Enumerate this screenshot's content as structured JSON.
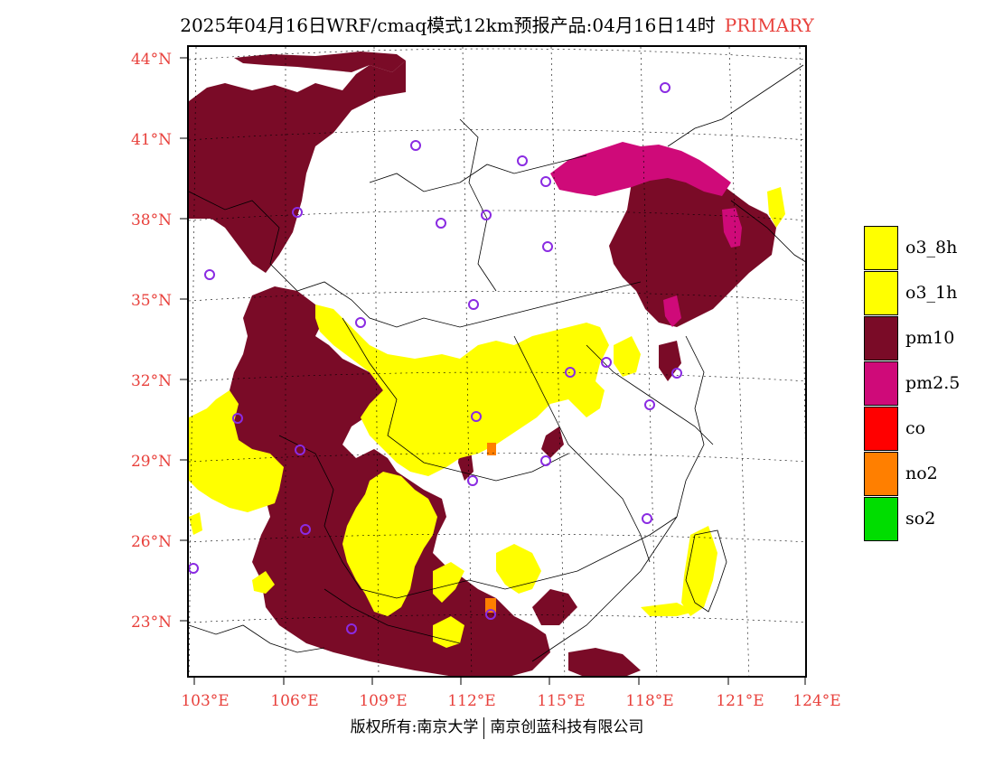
{
  "header": {
    "title": "2025年04月16日WRF/cmaq模式12km预报产品:04月16日14时",
    "tag": "PRIMARY"
  },
  "axes": {
    "lat_labels": [
      "44°N",
      "41°N",
      "38°N",
      "35°N",
      "32°N",
      "29°N",
      "26°N",
      "23°N"
    ],
    "lon_labels": [
      "103°E",
      "106°E",
      "109°E",
      "112°E",
      "115°E",
      "118°E",
      "121°E",
      "124°E"
    ]
  },
  "legend": {
    "items": [
      {
        "label": "o3_8h",
        "color": "#ffff00"
      },
      {
        "label": "o3_1h",
        "color": "#ffff00"
      },
      {
        "label": "pm10",
        "color": "#7a0b27"
      },
      {
        "label": "pm2.5",
        "color": "#cf0a79"
      },
      {
        "label": "co",
        "color": "#ff0000"
      },
      {
        "label": "no2",
        "color": "#ff7f00"
      },
      {
        "label": "so2",
        "color": "#00dd00"
      }
    ]
  },
  "footer": {
    "left": "版权所有:南京大学",
    "right": "南京创蓝科技有限公司"
  },
  "colors": {
    "label_red": "#e8413c",
    "pm10": "#7a0b27",
    "pm25": "#cf0a79",
    "o3": "#ffff00",
    "no2": "#ff7f00",
    "station_ring": "#8a2be2"
  }
}
